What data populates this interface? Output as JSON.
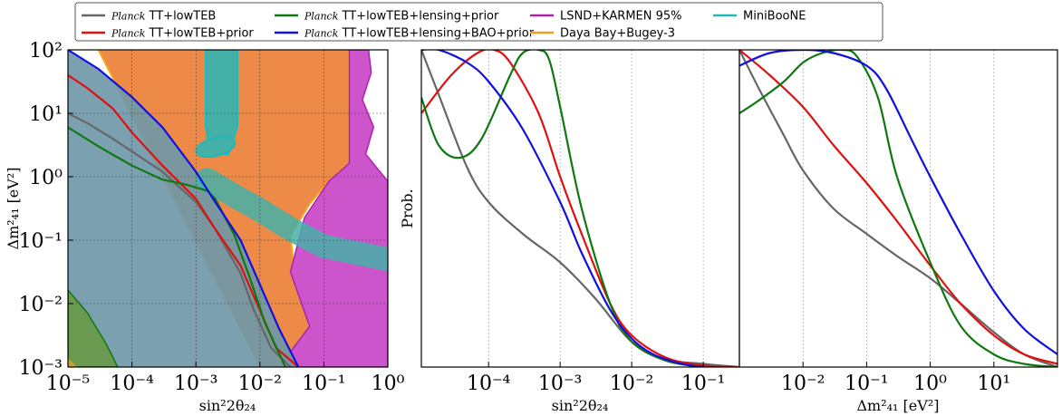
{
  "legend": [
    {
      "prefix": "Planck",
      "text": " TT+lowTEB",
      "color": "#666666"
    },
    {
      "prefix": "Planck",
      "text": " TT+lowTEB+prior",
      "color": "#e01010"
    },
    {
      "prefix": "Planck",
      "text": " TT+lowTEB+lensing+prior",
      "color": "#107810"
    },
    {
      "prefix": "Planck",
      "text": " TT+lowTEB+lensing+BAO+prior",
      "color": "#1010e0"
    },
    {
      "prefix": "",
      "text": "LSND+KARMEN 95%",
      "color": "#b020b0"
    },
    {
      "prefix": "",
      "text": "Daya Bay+Bugey-3",
      "color": "#f0a020"
    },
    {
      "prefix": "",
      "text": "MiniBooNE",
      "color": "#20b8b8"
    }
  ],
  "colors": {
    "planck_fill": "#7098a8",
    "lensing_fill": "#6a9a50",
    "dayabay_fill": "#ee8a48",
    "lsnd_fill": "#cc55cc",
    "miniboone_fill": "#44b0a8"
  },
  "panel1": {
    "xlabel": "sin²2θ₂₄",
    "ylabel": "Δm²₄₁ [eV²]",
    "xticks": [
      "10⁻⁵",
      "10⁻⁴",
      "10⁻³",
      "10⁻²",
      "10⁻¹",
      "10⁰"
    ],
    "yticks": [
      "10²",
      "10¹",
      "10⁰",
      "10⁻¹",
      "10⁻²",
      "10⁻³"
    ]
  },
  "panel2": {
    "xlabel": "sin²2θ₂₄",
    "ylabel": "Prob.",
    "xticks": [
      "10⁻⁴",
      "10⁻³",
      "10⁻²",
      "10⁻¹"
    ]
  },
  "panel3": {
    "xlabel": "Δm²₄₁ [eV²]",
    "xticks": [
      "10⁻²",
      "10⁻¹",
      "10⁰",
      "10¹"
    ]
  },
  "chart_data": [
    {
      "type": "area",
      "title": "",
      "xlabel": "sin²2θ₂₄",
      "ylabel": "Δm²₄₁ [eV²]",
      "xscale": "log",
      "yscale": "log",
      "xlim": [
        1e-05,
        1
      ],
      "ylim": [
        0.001,
        100
      ],
      "grid": true,
      "series": [
        {
          "name": "Planck TT+lowTEB",
          "x": [
            1e-05,
            2e-05,
            5e-05,
            0.0001,
            0.0003,
            0.001,
            0.002,
            0.005,
            0.008,
            0.015,
            0.03
          ],
          "y": [
            10,
            7,
            4,
            2.5,
            1.2,
            0.4,
            0.15,
            0.03,
            0.008,
            0.002,
            0.001
          ]
        },
        {
          "name": "Planck TT+lowTEB+prior",
          "x": [
            1e-05,
            2e-05,
            5e-05,
            0.0001,
            0.0003,
            0.001,
            0.002,
            0.005,
            0.009,
            0.018,
            0.04
          ],
          "y": [
            40,
            25,
            12,
            5,
            1.5,
            0.45,
            0.15,
            0.04,
            0.01,
            0.002,
            0.001
          ]
        },
        {
          "name": "Planck TT+lowTEB+lensing+prior",
          "x": [
            1e-05,
            3e-05,
            0.0001,
            0.0003,
            0.0007,
            0.0015,
            0.002,
            0.004,
            0.007,
            0.012,
            0.025
          ],
          "y": [
            6,
            3,
            1.5,
            0.9,
            0.75,
            0.6,
            0.45,
            0.12,
            0.025,
            0.005,
            0.001
          ]
        },
        {
          "name": "Planck TT+lowTEB+lensing+BAO+prior",
          "x": [
            1e-05,
            3e-05,
            0.0001,
            0.0003,
            0.001,
            0.002,
            0.005,
            0.01,
            0.02,
            0.04
          ],
          "y": [
            100,
            50,
            18,
            6,
            1.2,
            0.4,
            0.1,
            0.02,
            0.004,
            0.001
          ]
        },
        {
          "name": "MiniBooNE",
          "x": [
            0.0015,
            0.004,
            0.01,
            0.03,
            0.1,
            1
          ],
          "y": [
            0.9,
            0.5,
            0.3,
            0.15,
            0.08,
            0.05
          ]
        }
      ]
    },
    {
      "type": "line",
      "xlabel": "sin²2θ₂₄",
      "ylabel": "Prob.",
      "xscale": "log",
      "xlim": [
        1.15e-05,
        0.32
      ],
      "ylim": [
        0,
        1
      ],
      "series": [
        {
          "name": "Planck TT+lowTEB",
          "x": [
            1.15e-05,
            2e-05,
            5e-05,
            0.0001,
            0.0003,
            0.001,
            0.003,
            0.01,
            0.03,
            0.1,
            0.32
          ],
          "y": [
            1.0,
            0.86,
            0.63,
            0.52,
            0.42,
            0.33,
            0.22,
            0.08,
            0.025,
            0.01,
            0.0
          ]
        },
        {
          "name": "Planck TT+lowTEB+prior",
          "x": [
            1.15e-05,
            3e-05,
            7e-05,
            0.00012,
            0.0002,
            0.0005,
            0.001,
            0.002,
            0.005,
            0.01,
            0.03,
            0.1,
            0.3
          ],
          "y": [
            0.8,
            0.92,
            0.99,
            1.0,
            0.96,
            0.8,
            0.6,
            0.42,
            0.2,
            0.1,
            0.03,
            0.005,
            0.0
          ]
        },
        {
          "name": "Planck TT+lowTEB+lensing+prior",
          "x": [
            1.15e-05,
            2e-05,
            4e-05,
            8e-05,
            0.0002,
            0.0003,
            0.0005,
            0.0007,
            0.001,
            0.002,
            0.005,
            0.01,
            0.03,
            0.1
          ],
          "y": [
            0.85,
            0.7,
            0.66,
            0.72,
            0.92,
            0.99,
            1.0,
            0.97,
            0.82,
            0.5,
            0.2,
            0.08,
            0.02,
            0.0
          ]
        },
        {
          "name": "Planck TT+lowTEB+lensing+BAO+prior",
          "x": [
            1.15e-05,
            2e-05,
            5e-05,
            0.0001,
            0.0003,
            0.001,
            0.002,
            0.005,
            0.01,
            0.02,
            0.05,
            0.1
          ],
          "y": [
            1.0,
            1.0,
            0.96,
            0.9,
            0.75,
            0.52,
            0.36,
            0.18,
            0.09,
            0.04,
            0.01,
            0.0
          ]
        }
      ]
    },
    {
      "type": "line",
      "xlabel": "Δm²₄₁ [eV²]",
      "xscale": "log",
      "xlim": [
        0.001,
        100
      ],
      "ylim": [
        0,
        1
      ],
      "series": [
        {
          "name": "Planck TT+lowTEB",
          "x": [
            0.001,
            0.002,
            0.005,
            0.01,
            0.03,
            0.1,
            0.3,
            1,
            3,
            10,
            30,
            100
          ],
          "y": [
            1.0,
            0.88,
            0.73,
            0.62,
            0.5,
            0.42,
            0.35,
            0.28,
            0.2,
            0.11,
            0.04,
            0.0
          ]
        },
        {
          "name": "Planck TT+lowTEB+prior",
          "x": [
            0.001,
            0.003,
            0.01,
            0.03,
            0.1,
            0.3,
            1,
            3,
            10,
            30,
            100
          ],
          "y": [
            1.0,
            0.92,
            0.82,
            0.7,
            0.58,
            0.46,
            0.32,
            0.2,
            0.1,
            0.04,
            0.01
          ]
        },
        {
          "name": "Planck TT+lowTEB+lensing+prior",
          "x": [
            0.001,
            0.002,
            0.005,
            0.01,
            0.02,
            0.04,
            0.07,
            0.15,
            0.3,
            1,
            3,
            10,
            30,
            100
          ],
          "y": [
            0.8,
            0.84,
            0.9,
            0.96,
            0.99,
            1.0,
            0.98,
            0.85,
            0.6,
            0.33,
            0.13,
            0.04,
            0.01,
            0.0
          ]
        },
        {
          "name": "Planck TT+lowTEB+lensing+BAO+prior",
          "x": [
            0.001,
            0.003,
            0.01,
            0.03,
            0.1,
            0.2,
            0.5,
            1,
            3,
            10,
            30,
            100
          ],
          "y": [
            0.95,
            0.99,
            1.0,
            0.99,
            0.95,
            0.88,
            0.72,
            0.6,
            0.42,
            0.24,
            0.12,
            0.04
          ]
        }
      ]
    }
  ]
}
